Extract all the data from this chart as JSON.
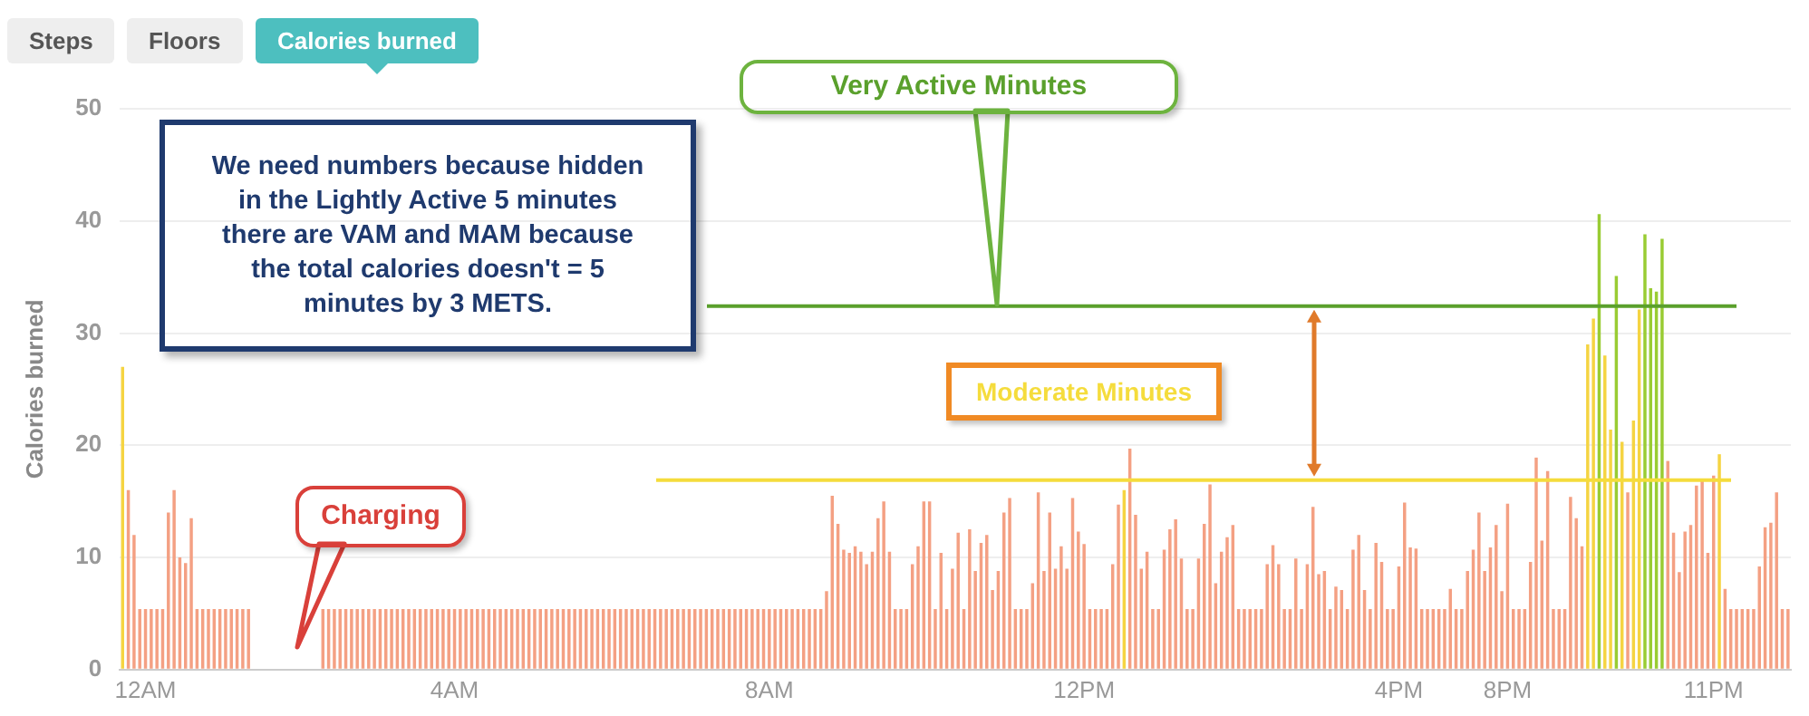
{
  "chart_data": {
    "type": "bar",
    "ylabel": "Calories burned",
    "ylim": [
      0,
      50
    ],
    "yticks": [
      0,
      10,
      20,
      30,
      40,
      50
    ],
    "grid": "y",
    "categories": [
      null,
      null,
      null,
      null,
      "12AM",
      null,
      null,
      null,
      null,
      null,
      null,
      null,
      null,
      null,
      null,
      null,
      null,
      null,
      null,
      null,
      null,
      null,
      null,
      null,
      null,
      null,
      null,
      null,
      null,
      null,
      null,
      null,
      null,
      null,
      null,
      null,
      null,
      null,
      null,
      null,
      null,
      null,
      null,
      null,
      null,
      null,
      null,
      null,
      null,
      null,
      null,
      null,
      null,
      null,
      null,
      null,
      null,
      null,
      "4AM",
      null,
      null,
      null,
      null,
      null,
      null,
      null,
      null,
      null,
      null,
      null,
      null,
      null,
      null,
      null,
      null,
      null,
      null,
      null,
      null,
      null,
      null,
      null,
      null,
      null,
      null,
      null,
      null,
      null,
      null,
      null,
      null,
      null,
      null,
      null,
      null,
      null,
      null,
      null,
      null,
      null,
      null,
      null,
      null,
      null,
      null,
      null,
      null,
      null,
      null,
      null,
      null,
      null,
      null,
      "8AM",
      null,
      null,
      null,
      null,
      null,
      null,
      null,
      null,
      null,
      null,
      null,
      null,
      null,
      null,
      null,
      null,
      null,
      null,
      null,
      null,
      null,
      null,
      null,
      null,
      null,
      null,
      null,
      null,
      null,
      null,
      null,
      null,
      null,
      null,
      null,
      null,
      null,
      null,
      null,
      null,
      null,
      null,
      null,
      null,
      null,
      null,
      null,
      null,
      null,
      null,
      null,
      null,
      null,
      null,
      "12PM",
      null,
      null,
      null,
      null,
      null,
      null,
      null,
      null,
      null,
      null,
      null,
      null,
      null,
      null,
      null,
      null,
      null,
      null,
      null,
      null,
      null,
      null,
      null,
      null,
      null,
      null,
      null,
      null,
      null,
      null,
      null,
      null,
      null,
      null,
      null,
      null,
      null,
      null,
      null,
      null,
      null,
      null,
      null,
      null,
      null,
      null,
      null,
      null,
      null,
      null,
      null,
      null,
      null,
      null,
      "4PM",
      null,
      null,
      null,
      null,
      null,
      null,
      null,
      null,
      null,
      null,
      null,
      null,
      null,
      null,
      null,
      null,
      null,
      null,
      "8PM",
      null,
      null,
      null,
      null,
      null,
      null,
      null,
      null,
      null,
      null,
      null,
      null,
      null,
      null,
      null,
      null,
      null,
      null,
      null,
      null,
      null,
      null,
      null,
      null,
      null,
      null,
      null,
      null,
      null,
      null,
      null,
      null,
      null,
      null,
      null,
      "11PM",
      null,
      null,
      null,
      null,
      null,
      null,
      null,
      null,
      null,
      null,
      null,
      null,
      null
    ],
    "values": [
      27,
      16,
      12,
      5.4,
      5.4,
      5.4,
      5.4,
      5.4,
      14,
      16,
      10,
      9.5,
      13.5,
      5.4,
      5.4,
      5.4,
      5.4,
      5.4,
      5.4,
      5.4,
      5.4,
      5.4,
      5.4,
      null,
      null,
      null,
      null,
      null,
      null,
      null,
      null,
      null,
      null,
      null,
      null,
      5.4,
      5.4,
      5.4,
      5.4,
      5.4,
      5.4,
      5.4,
      5.4,
      5.4,
      5.4,
      5.4,
      5.4,
      5.4,
      5.4,
      5.4,
      5.4,
      5.4,
      5.4,
      5.4,
      5.4,
      5.4,
      5.4,
      5.4,
      5.4,
      5.4,
      5.4,
      5.4,
      5.4,
      5.4,
      5.4,
      5.4,
      5.4,
      5.4,
      5.4,
      5.4,
      5.4,
      5.4,
      5.4,
      5.4,
      5.4,
      5.4,
      5.4,
      5.4,
      5.4,
      5.4,
      5.4,
      5.4,
      5.4,
      5.4,
      5.4,
      5.4,
      5.4,
      5.4,
      5.4,
      5.4,
      5.4,
      5.4,
      5.4,
      5.4,
      5.4,
      5.4,
      5.4,
      5.4,
      5.4,
      5.4,
      5.4,
      5.4,
      5.4,
      5.4,
      5.4,
      5.4,
      5.4,
      5.4,
      5.4,
      5.4,
      5.4,
      5.4,
      5.4,
      5.4,
      5.4,
      5.4,
      5.4,
      5.4,
      5.4,
      5.4,
      5.4,
      5.4,
      5.4,
      7,
      15.5,
      13,
      10.7,
      10.4,
      11,
      10.5,
      9.4,
      10.5,
      13.5,
      15,
      10.5,
      5.4,
      5.4,
      5.4,
      9.4,
      11,
      15,
      15,
      5.4,
      10.4,
      5.4,
      9,
      12.2,
      5.4,
      12.5,
      8.8,
      11.3,
      12,
      7.1,
      8.8,
      14,
      15.3,
      5.4,
      5.4,
      5.4,
      7.7,
      15.8,
      8.8,
      14,
      9,
      11,
      9,
      15.3,
      12.3,
      11.2,
      5.4,
      5.4,
      5.4,
      5.4,
      9.4,
      14.7,
      16,
      19.7,
      13.8,
      9,
      10.5,
      5.4,
      5.4,
      10.7,
      12.5,
      13.4,
      9.9,
      5.4,
      5.4,
      9.9,
      13,
      16.5,
      7.7,
      10.5,
      11.8,
      12.9,
      5.4,
      5.4,
      5.4,
      5.4,
      5.4,
      9.4,
      11.1,
      9.4,
      5.4,
      5.4,
      9.9,
      5.4,
      9.4,
      14.5,
      8.5,
      8.8,
      5.4,
      7.4,
      7.1,
      5.4,
      10.7,
      12,
      7.1,
      5.4,
      11.3,
      9.6,
      5.4,
      5.4,
      9.2,
      14.9,
      10.9,
      10.8,
      5.4,
      5.4,
      5.4,
      5.4,
      5.4,
      7.2,
      5.4,
      5.4,
      8.8,
      10.7,
      14,
      8.8,
      10.9,
      12.9,
      7,
      14.8,
      5.4,
      5.4,
      5.4,
      9.6,
      18.9,
      11.5,
      17.7,
      5.4,
      5.4,
      5.4,
      15.4,
      13.5,
      11,
      29,
      31.3,
      40.6,
      28,
      21.4,
      35.1,
      20.3,
      15.8,
      22.2,
      32.1,
      38.8,
      34,
      33.7,
      38.4,
      18.6,
      12.2,
      8.7,
      12.3,
      12.9,
      16.4,
      17,
      10.4,
      17.3,
      19.2,
      7.2,
      5.4,
      5.4,
      5.4,
      5.4,
      5.4,
      9.2,
      12.7,
      13.1,
      15.8,
      5.4,
      5.4
    ],
    "colors": [
      "#f5d442",
      "#f4a083",
      "#f4a083",
      "#f4a083",
      "#f4a083",
      "#f4a083",
      "#f4a083",
      "#f4a083",
      "#f4a083",
      "#f4a083",
      "#f4a083",
      "#f4a083",
      "#f4a083",
      "#f4a083",
      "#f4a083",
      "#f4a083",
      "#f4a083",
      "#f4a083",
      "#f4a083",
      "#f4a083",
      "#f4a083",
      "#f4a083",
      "#f4a083",
      "#f4a083",
      "#f4a083",
      "#f4a083",
      "#f4a083",
      "#f4a083",
      "#f4a083",
      "#f4a083",
      "#f4a083",
      "#f4a083",
      "#f4a083",
      "#f4a083",
      "#f4a083",
      "#f4a083",
      "#f4a083",
      "#f4a083",
      "#f4a083",
      "#f4a083",
      "#f4a083",
      "#f4a083",
      "#f4a083",
      "#f4a083",
      "#f4a083",
      "#f4a083",
      "#f4a083",
      "#f4a083",
      "#f4a083",
      "#f4a083",
      "#f4a083",
      "#f4a083",
      "#f4a083",
      "#f4a083",
      "#f4a083",
      "#f4a083",
      "#f4a083",
      "#f4a083",
      "#f4a083",
      "#f4a083",
      "#f4a083",
      "#f4a083",
      "#f4a083",
      "#f4a083",
      "#f4a083",
      "#f4a083",
      "#f4a083",
      "#f4a083",
      "#f4a083",
      "#f4a083",
      "#f4a083",
      "#f4a083",
      "#f4a083",
      "#f4a083",
      "#f4a083",
      "#f4a083",
      "#f4a083",
      "#f4a083",
      "#f4a083",
      "#f4a083",
      "#f4a083",
      "#f4a083",
      "#f4a083",
      "#f4a083",
      "#f4a083",
      "#f4a083",
      "#f4a083",
      "#f4a083",
      "#f4a083",
      "#f4a083",
      "#f4a083",
      "#f4a083",
      "#f4a083",
      "#f4a083",
      "#f4a083",
      "#f4a083",
      "#f4a083",
      "#f4a083",
      "#f4a083",
      "#f4a083",
      "#f4a083",
      "#f4a083",
      "#f4a083",
      "#f4a083",
      "#f4a083",
      "#f4a083",
      "#f4a083",
      "#f4a083",
      "#f4a083",
      "#f4a083",
      "#f4a083",
      "#f4a083",
      "#f4a083",
      "#f4a083",
      "#f4a083",
      "#f4a083",
      "#f4a083",
      "#f4a083",
      "#f4a083",
      "#f4a083",
      "#f4a083",
      "#f4a083",
      "#f4a083",
      "#f4a083",
      "#f4a083",
      "#f4a083",
      "#f4a083",
      "#f4a083",
      "#f4a083",
      "#f4a083",
      "#f4a083",
      "#f4a083",
      "#f4a083",
      "#f4a083",
      "#f4a083",
      "#f4a083",
      "#f4a083",
      "#f4a083",
      "#f4a083",
      "#f4a083",
      "#f4a083",
      "#f4a083",
      "#f4a083",
      "#f4a083",
      "#f4a083",
      "#f4a083",
      "#f4a083",
      "#f4a083",
      "#f4a083",
      "#f4a083",
      "#f4a083",
      "#f4a083",
      "#f4a083",
      "#f4a083",
      "#f4a083",
      "#f4a083",
      "#f4a083",
      "#f4a083",
      "#f4a083",
      "#f4a083",
      "#f4a083",
      "#f4a083",
      "#f4a083",
      "#f4a083",
      "#f4a083",
      "#f4a083",
      "#f4a083",
      "#f4a083",
      "#f4a083",
      "#f4a083",
      "#f4a083",
      "#f4a083",
      "#f4a083",
      "#f4a083",
      "#f4a083",
      "#f5d442",
      "#f4a083",
      "#f4a083",
      "#f4a083",
      "#f4a083",
      "#f4a083",
      "#f4a083",
      "#f4a083",
      "#f4a083",
      "#f4a083",
      "#f4a083",
      "#f4a083",
      "#f4a083",
      "#f4a083",
      "#f4a083",
      "#f4a083",
      "#f4a083",
      "#f4a083",
      "#f4a083",
      "#f4a083",
      "#f4a083",
      "#f4a083",
      "#f4a083",
      "#f4a083",
      "#f4a083",
      "#f4a083",
      "#f4a083",
      "#f4a083",
      "#f4a083",
      "#f4a083",
      "#f4a083",
      "#f4a083",
      "#f4a083",
      "#f4a083",
      "#f4a083",
      "#f4a083",
      "#f4a083",
      "#f4a083",
      "#f4a083",
      "#f4a083",
      "#f4a083",
      "#f4a083",
      "#f4a083",
      "#f4a083",
      "#f4a083",
      "#f4a083",
      "#f4a083",
      "#f4a083",
      "#f4a083",
      "#f4a083",
      "#f4a083",
      "#f4a083",
      "#f4a083",
      "#f4a083",
      "#f4a083",
      "#f4a083",
      "#f4a083",
      "#f4a083",
      "#f4a083",
      "#f4a083",
      "#f4a083",
      "#f4a083",
      "#f4a083",
      "#f4a083",
      "#f4a083",
      "#f4a083",
      "#f4a083",
      "#f4a083",
      "#f4a083",
      "#f4a083",
      "#f4a083",
      "#f4a083",
      "#f4a083",
      "#f4a083",
      "#f4a083",
      "#f4a083",
      "#f4a083",
      "#f4a083",
      "#f4a083",
      "#f4a083",
      "#f4a083",
      "#f5d442",
      "#f5d442",
      "#99cc33",
      "#f5d442",
      "#f5d442",
      "#99cc33",
      "#f5d442",
      "#f4a083",
      "#f5d442",
      "#f5d442",
      "#99cc33",
      "#99cc33",
      "#99cc33",
      "#99cc33",
      "#f4a083",
      "#f4a083",
      "#f4a083",
      "#f4a083",
      "#f4a083",
      "#f4a083",
      "#f4a083",
      "#f4a083",
      "#f4a083",
      "#f5d442",
      "#f4a083",
      "#f4a083",
      "#f4a083",
      "#f4a083",
      "#f4a083",
      "#f4a083",
      "#f4a083",
      "#f4a083",
      "#f4a083",
      "#f4a083",
      "#f4a083",
      "#f4a083"
    ],
    "ref_lines": [
      {
        "axis": "y",
        "value": 32.4,
        "label": "Very Active Minutes",
        "color": "#5aa02c"
      },
      {
        "axis": "y",
        "value": 16.9,
        "label": "Moderate Minutes",
        "color": "#f5dc3c"
      }
    ],
    "annotations": [
      "Steps",
      "Floors",
      "Calories burned",
      "We need numbers because hidden in the Lightly Active 5 minutes there are VAM and MAM because the total calories doesn't = 5 minutes by 3 METS.",
      "Charging"
    ]
  }
}
